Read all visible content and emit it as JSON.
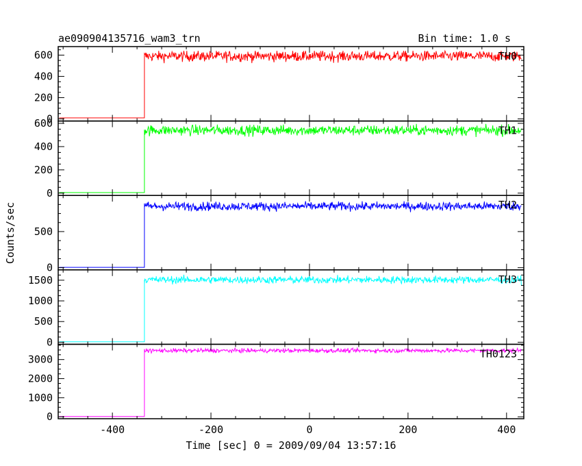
{
  "chart_data": {
    "type": "line",
    "title": "ae090904135716_wam3_trn",
    "subtitle": "Bin time: 1.0 s",
    "xlabel": "Time [sec] 0 = 2009/09/04 13:57:16",
    "ylabel": "Counts/sec",
    "xlim": [
      -510,
      435
    ],
    "x_ticks": [
      -400,
      -200,
      0,
      200,
      400
    ],
    "step_time": -335,
    "grid": false,
    "panels": [
      {
        "name": "TH0",
        "color": "#ff0000",
        "ylim": [
          -20,
          680
        ],
        "yticks": [
          0,
          200,
          400,
          600
        ],
        "pre_level": 10,
        "post_level": 590,
        "noise": 25,
        "peak": 640
      },
      {
        "name": "TH1",
        "color": "#00ff00",
        "ylim": [
          -20,
          620
        ],
        "yticks": [
          0,
          200,
          400,
          600
        ],
        "pre_level": 5,
        "post_level": 540,
        "noise": 22,
        "peak": 595
      },
      {
        "name": "TH2",
        "color": "#0000ff",
        "ylim": [
          -30,
          1000
        ],
        "yticks": [
          0,
          500
        ],
        "pre_level": 5,
        "post_level": 850,
        "noise": 30,
        "peak": 920
      },
      {
        "name": "TH3",
        "color": "#00ffff",
        "ylim": [
          -50,
          1750
        ],
        "yticks": [
          0,
          500,
          1000,
          1500
        ],
        "pre_level": 10,
        "post_level": 1510,
        "noise": 45,
        "peak": 1650
      },
      {
        "name": "TH0123",
        "color": "#ff00ff",
        "ylim": [
          -100,
          3800
        ],
        "yticks": [
          0,
          1000,
          2000,
          3000
        ],
        "pre_level": 15,
        "post_level": 3470,
        "noise": 55,
        "peak": 3600
      }
    ]
  }
}
